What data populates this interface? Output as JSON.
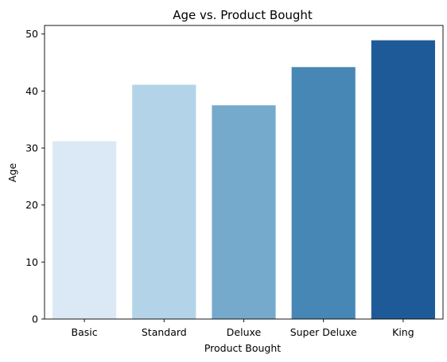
{
  "chart_data": {
    "type": "bar",
    "title": "Age vs. Product Bought",
    "xlabel": "Product Bought",
    "ylabel": "Age",
    "categories": [
      "Basic",
      "Standard",
      "Deluxe",
      "Super Deluxe",
      "King"
    ],
    "values": [
      31.2,
      41.1,
      37.5,
      44.2,
      48.9
    ],
    "colors": [
      "#dbe9f6",
      "#b3d3e8",
      "#76aacc",
      "#4787b6",
      "#1f5a98"
    ],
    "ylim": [
      0,
      51.5
    ],
    "yticks": [
      0,
      10,
      20,
      30,
      40,
      50
    ],
    "grid": false,
    "legend": "none"
  }
}
